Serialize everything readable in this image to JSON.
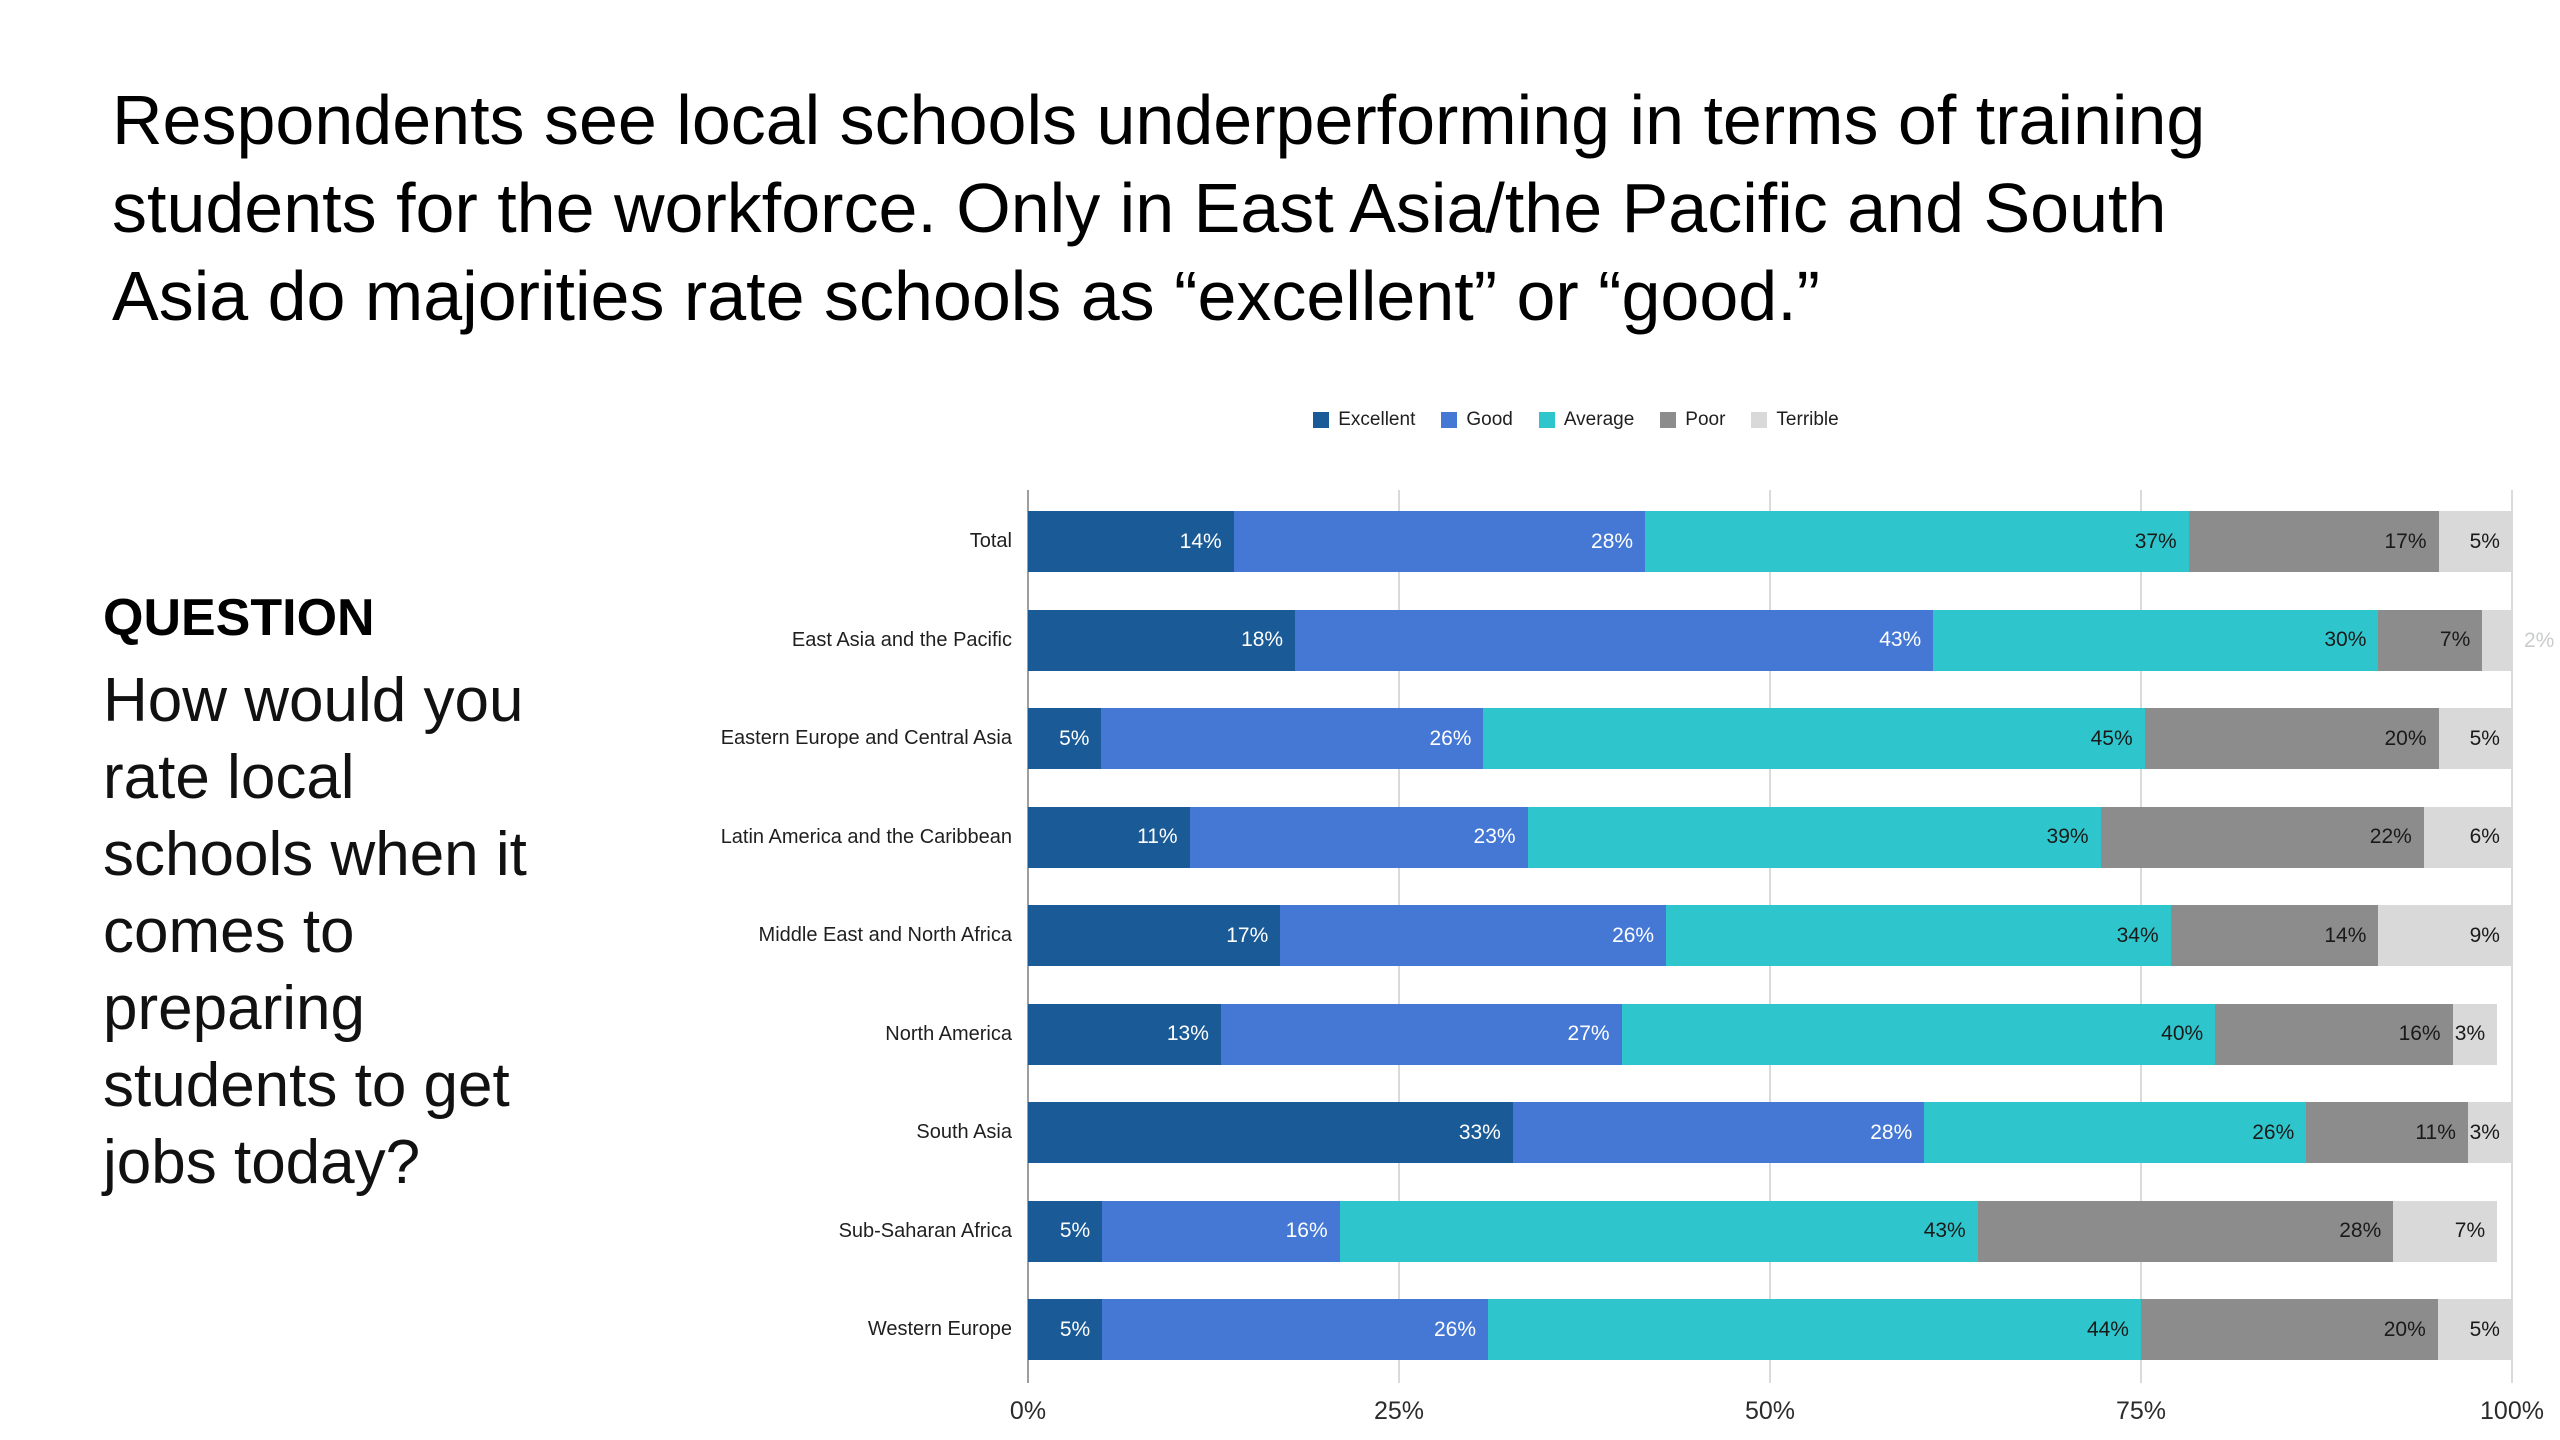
{
  "title_lines": [
    "Respondents see local schools underperforming in terms of training",
    "students for the workforce. Only in East Asia/the Pacific and South",
    "Asia do majorities rate schools as “excellent” or “good.”"
  ],
  "question": {
    "heading": "QUESTION",
    "lines": [
      "How would you",
      "rate local",
      "schools when it",
      "comes to",
      "preparing",
      "students to get",
      "jobs today?"
    ]
  },
  "chart_data": {
    "type": "bar",
    "stacked": true,
    "orientation": "horizontal",
    "legend_position": "top",
    "grid": "vertical",
    "xlim": [
      0,
      100
    ],
    "x_tick_values": [
      0,
      25,
      50,
      75,
      100
    ],
    "x_tick_labels": [
      "0%",
      "25%",
      "50%",
      "75%",
      "100%"
    ],
    "value_suffix": "%",
    "categories": [
      "Total",
      "East Asia and the Pacific",
      "Eastern Europe and Central Asia",
      "Latin America and the Caribbean",
      "Middle East and North Africa",
      "North America",
      "South Asia",
      "Sub-Saharan Africa",
      "Western Europe"
    ],
    "series": [
      {
        "name": "Excellent",
        "color": "#1A5A96",
        "label_color": "#FFFFFF",
        "values": [
          14,
          18,
          5,
          11,
          17,
          13,
          33,
          5,
          5
        ]
      },
      {
        "name": "Good",
        "color": "#4478D4",
        "label_color": "#FFFFFF",
        "values": [
          28,
          43,
          26,
          23,
          26,
          27,
          28,
          16,
          26
        ]
      },
      {
        "name": "Average",
        "color": "#2EC6CC",
        "label_color": "#1A1A1A",
        "values": [
          37,
          30,
          45,
          39,
          34,
          40,
          26,
          43,
          44
        ]
      },
      {
        "name": "Poor",
        "color": "#8C8C8C",
        "label_color": "#1A1A1A",
        "values": [
          17,
          7,
          20,
          22,
          14,
          16,
          11,
          28,
          20
        ]
      },
      {
        "name": "Terrible",
        "color": "#D9D9D9",
        "label_color": "#1A1A1A",
        "values": [
          5,
          2,
          5,
          6,
          9,
          3,
          3,
          7,
          5
        ]
      }
    ],
    "outside_label_color": "#C9CCCB"
  }
}
